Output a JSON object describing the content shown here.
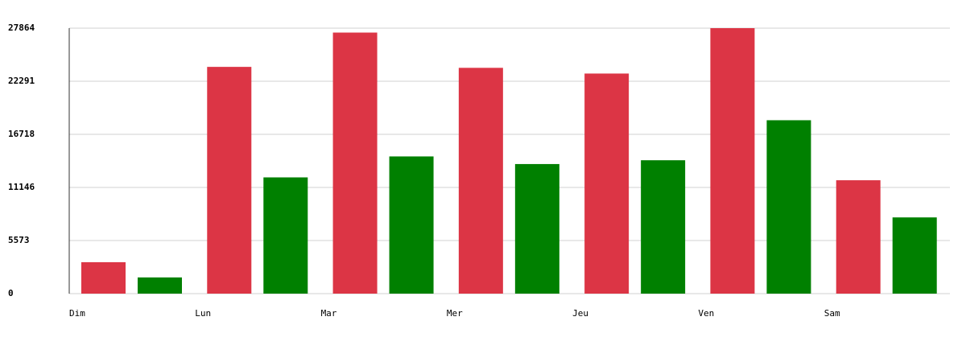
{
  "chart_data": {
    "type": "bar",
    "categories": [
      "Dim",
      "Lun",
      "Mar",
      "Mer",
      "Jeu",
      "Ven",
      "Sam"
    ],
    "series": [
      {
        "color": "#dc3545",
        "values": [
          3300,
          23800,
          27400,
          23700,
          23100,
          27864,
          11900
        ]
      },
      {
        "color": "#008000",
        "values": [
          1700,
          12200,
          14400,
          13600,
          14000,
          18200,
          8000
        ]
      }
    ],
    "ylim": [
      0,
      27864
    ],
    "yticks": [
      0,
      5573,
      11146,
      16718,
      22291,
      27864
    ],
    "grid": true
  }
}
